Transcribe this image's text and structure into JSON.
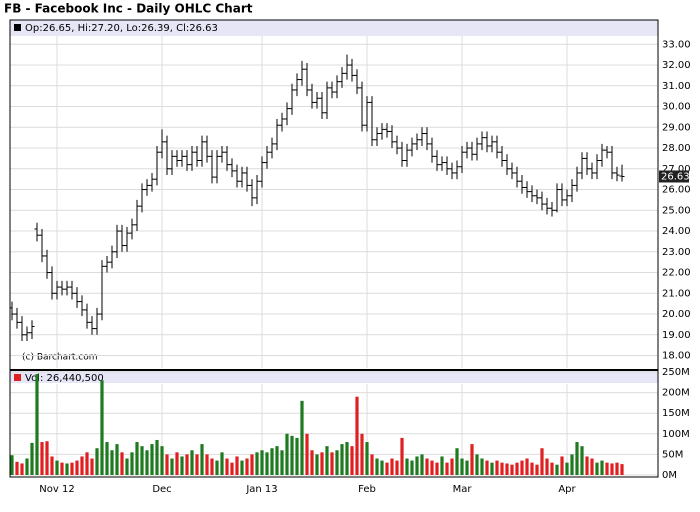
{
  "chart_data": {
    "type": "ohlc",
    "title": "FB - Facebook Inc - Daily OHLC Chart",
    "ohlc_summary": "Op:26.65, Hi:27.20, Lo:26.39, Cl:26.63",
    "watermark": "(c) Barchart.com",
    "volume_label": "Vol: 26,440,500",
    "grid": true,
    "up_color": "#1e7a1e",
    "down_color": "#e02020",
    "bar_color": "#000000",
    "categories": [
      null,
      null,
      null,
      null,
      null,
      null,
      null,
      null,
      null,
      "Nov 12",
      null,
      null,
      null,
      null,
      null,
      null,
      null,
      null,
      null,
      null,
      null,
      null,
      null,
      null,
      null,
      null,
      null,
      null,
      null,
      null,
      "Dec",
      null,
      null,
      null,
      null,
      null,
      null,
      null,
      null,
      null,
      null,
      null,
      null,
      null,
      null,
      null,
      null,
      null,
      null,
      null,
      "Jan 13",
      null,
      null,
      null,
      null,
      null,
      null,
      null,
      null,
      null,
      null,
      null,
      null,
      null,
      null,
      null,
      null,
      null,
      null,
      null,
      null,
      "Feb",
      null,
      null,
      null,
      null,
      null,
      null,
      null,
      null,
      null,
      null,
      null,
      null,
      null,
      null,
      null,
      null,
      null,
      null,
      "Mar",
      null,
      null,
      null,
      null,
      null,
      null,
      null,
      null,
      null,
      null,
      null,
      null,
      null,
      null,
      null,
      null,
      null,
      null,
      null,
      null,
      "Apr",
      null,
      null,
      null,
      null,
      null,
      null,
      null,
      null,
      null,
      null,
      null
    ],
    "open": [
      20.3,
      20.0,
      19.6,
      19.0,
      19.1,
      24.1,
      23.8,
      22.8,
      22.0,
      21.0,
      21.3,
      21.2,
      21.3,
      21.0,
      20.6,
      20.2,
      19.6,
      19.3,
      20.0,
      22.3,
      22.5,
      23.0,
      24.0,
      23.3,
      23.9,
      24.3,
      25.2,
      26.0,
      26.2,
      26.5,
      27.8,
      28.3,
      27.0,
      27.6,
      27.4,
      27.6,
      27.2,
      27.8,
      27.4,
      28.3,
      27.6,
      26.6,
      27.6,
      27.8,
      27.2,
      26.9,
      26.4,
      26.8,
      26.2,
      25.6,
      26.4,
      27.3,
      27.8,
      28.2,
      29.1,
      29.4,
      29.9,
      30.8,
      31.3,
      31.8,
      30.8,
      30.2,
      30.4,
      29.7,
      30.9,
      30.7,
      31.2,
      31.6,
      32.0,
      31.5,
      30.9,
      29.1,
      30.2,
      28.4,
      28.7,
      28.9,
      28.8,
      28.3,
      28.0,
      27.4,
      27.9,
      28.2,
      28.4,
      28.7,
      28.2,
      27.6,
      27.2,
      27.3,
      27.0,
      26.8,
      27.1,
      27.8,
      28.0,
      27.7,
      28.2,
      28.5,
      28.1,
      28.3,
      27.8,
      27.4,
      27.0,
      26.8,
      26.4,
      26.1,
      25.9,
      25.7,
      25.6,
      25.3,
      25.1,
      25.0,
      26.0,
      25.5,
      25.7,
      26.2,
      26.8,
      27.5,
      27.0,
      26.8,
      27.4,
      27.9,
      27.8,
      26.8,
      26.65
    ],
    "high": [
      20.6,
      20.3,
      19.9,
      19.4,
      19.7,
      24.4,
      24.1,
      23.1,
      22.3,
      21.6,
      21.6,
      21.6,
      21.6,
      21.3,
      20.9,
      20.5,
      19.9,
      20.3,
      22.6,
      22.8,
      23.3,
      24.3,
      24.3,
      24.2,
      24.6,
      25.5,
      26.3,
      26.5,
      26.8,
      28.1,
      28.9,
      28.6,
      27.9,
      27.9,
      27.9,
      27.9,
      28.1,
      28.1,
      28.6,
      28.6,
      27.9,
      27.9,
      28.1,
      28.1,
      27.5,
      27.2,
      27.1,
      27.1,
      26.5,
      26.7,
      27.6,
      28.1,
      28.5,
      29.4,
      29.7,
      30.2,
      31.1,
      31.6,
      32.2,
      32.1,
      31.1,
      30.7,
      30.7,
      31.2,
      31.2,
      31.5,
      31.9,
      32.5,
      32.3,
      31.8,
      31.2,
      30.5,
      30.5,
      29.0,
      29.2,
      29.2,
      29.1,
      28.6,
      28.3,
      28.2,
      28.5,
      28.7,
      29.0,
      29.0,
      28.5,
      27.9,
      27.6,
      27.6,
      27.3,
      27.4,
      28.1,
      28.3,
      28.3,
      28.5,
      28.8,
      28.8,
      28.6,
      28.6,
      28.1,
      27.7,
      27.3,
      27.1,
      26.7,
      26.4,
      26.2,
      26.0,
      25.9,
      25.6,
      25.4,
      26.3,
      26.3,
      26.0,
      26.5,
      27.1,
      27.8,
      27.8,
      27.3,
      27.7,
      28.2,
      28.1,
      28.1,
      27.1,
      27.2
    ],
    "low": [
      19.7,
      19.3,
      18.7,
      18.7,
      18.8,
      23.5,
      22.5,
      21.7,
      20.7,
      20.7,
      20.9,
      20.9,
      20.7,
      20.3,
      19.9,
      19.3,
      19.0,
      19.0,
      19.7,
      22.0,
      22.2,
      22.7,
      23.0,
      23.0,
      23.6,
      24.0,
      24.9,
      25.7,
      25.9,
      26.2,
      27.5,
      26.7,
      26.7,
      27.1,
      27.1,
      26.9,
      26.9,
      27.1,
      27.1,
      27.3,
      26.3,
      26.3,
      27.3,
      26.9,
      26.6,
      26.1,
      26.1,
      25.9,
      25.2,
      25.3,
      26.1,
      27.0,
      27.5,
      27.9,
      28.8,
      29.1,
      29.6,
      30.5,
      31.0,
      30.5,
      29.9,
      29.9,
      29.4,
      29.4,
      30.4,
      30.4,
      30.9,
      31.3,
      31.2,
      30.6,
      28.8,
      28.8,
      28.1,
      28.1,
      28.4,
      28.5,
      28.0,
      27.7,
      27.1,
      27.1,
      27.6,
      27.9,
      28.1,
      27.9,
      27.3,
      26.9,
      26.9,
      26.7,
      26.5,
      26.5,
      26.8,
      27.5,
      27.4,
      27.4,
      27.9,
      27.8,
      27.8,
      27.5,
      27.1,
      26.7,
      26.5,
      26.1,
      25.8,
      25.6,
      25.4,
      25.3,
      25.0,
      24.8,
      24.7,
      24.9,
      25.2,
      25.2,
      25.4,
      25.9,
      26.5,
      26.7,
      26.5,
      26.5,
      27.1,
      27.5,
      26.5,
      26.4,
      26.39
    ],
    "close": [
      20.0,
      19.6,
      19.0,
      19.1,
      19.4,
      23.8,
      22.8,
      22.0,
      21.0,
      21.3,
      21.2,
      21.3,
      21.0,
      20.6,
      20.2,
      19.6,
      19.3,
      20.0,
      22.3,
      22.5,
      23.0,
      24.0,
      23.3,
      23.9,
      24.3,
      25.2,
      26.0,
      26.2,
      26.5,
      27.8,
      28.3,
      27.0,
      27.6,
      27.4,
      27.6,
      27.2,
      27.8,
      27.4,
      28.3,
      27.6,
      26.6,
      27.6,
      27.8,
      27.2,
      26.9,
      26.4,
      26.8,
      26.2,
      25.6,
      26.4,
      27.3,
      27.8,
      28.2,
      29.1,
      29.4,
      29.9,
      30.8,
      31.3,
      31.8,
      30.8,
      30.2,
      30.4,
      29.7,
      30.9,
      30.7,
      31.2,
      31.6,
      32.0,
      31.5,
      30.9,
      29.1,
      30.2,
      28.4,
      28.7,
      28.9,
      28.8,
      28.3,
      28.0,
      27.4,
      27.9,
      28.2,
      28.4,
      28.7,
      28.2,
      27.6,
      27.2,
      27.3,
      27.0,
      26.8,
      27.1,
      27.8,
      28.0,
      27.7,
      28.2,
      28.5,
      28.1,
      28.3,
      27.8,
      27.4,
      27.0,
      26.8,
      26.4,
      26.1,
      25.9,
      25.7,
      25.6,
      25.3,
      25.1,
      25.0,
      26.0,
      25.5,
      25.7,
      26.2,
      26.8,
      27.5,
      27.0,
      26.8,
      27.4,
      27.9,
      27.8,
      26.8,
      26.7,
      26.63
    ],
    "volume": [
      48,
      32,
      28,
      40,
      78,
      245,
      80,
      82,
      45,
      35,
      30,
      28,
      30,
      35,
      45,
      55,
      40,
      65,
      230,
      80,
      60,
      75,
      55,
      40,
      55,
      80,
      70,
      60,
      75,
      85,
      70,
      50,
      40,
      55,
      45,
      50,
      60,
      50,
      75,
      50,
      40,
      35,
      55,
      40,
      30,
      45,
      35,
      40,
      50,
      55,
      60,
      55,
      65,
      70,
      60,
      100,
      95,
      90,
      180,
      100,
      60,
      50,
      55,
      70,
      55,
      60,
      75,
      80,
      70,
      190,
      100,
      80,
      50,
      40,
      35,
      30,
      40,
      35,
      90,
      40,
      35,
      45,
      50,
      40,
      35,
      30,
      45,
      30,
      40,
      65,
      40,
      35,
      75,
      50,
      40,
      35,
      30,
      35,
      30,
      28,
      25,
      30,
      35,
      40,
      30,
      25,
      65,
      40,
      30,
      25,
      45,
      30,
      50,
      80,
      70,
      45,
      40,
      30,
      35,
      30,
      28,
      30,
      26.44
    ],
    "ylim": [
      17.4,
      33.4
    ],
    "yticks": [
      {
        "value": 18,
        "label": "18.00"
      },
      {
        "value": 19,
        "label": "19.00"
      },
      {
        "value": 20,
        "label": "20.00"
      },
      {
        "value": 21,
        "label": "21.00"
      },
      {
        "value": 22,
        "label": "22.00"
      },
      {
        "value": 23,
        "label": "23.00"
      },
      {
        "value": 24,
        "label": "24.00"
      },
      {
        "value": 25,
        "label": "25.00"
      },
      {
        "value": 26,
        "label": "26.00"
      },
      {
        "value": 27,
        "label": "27.00"
      },
      {
        "value": 28,
        "label": "28.00"
      },
      {
        "value": 29,
        "label": "29.00"
      },
      {
        "value": 30,
        "label": "30.00"
      },
      {
        "value": 31,
        "label": "31.00"
      },
      {
        "value": 32,
        "label": "32.00"
      },
      {
        "value": 33,
        "label": "33.00"
      }
    ],
    "y2lim": [
      0,
      250
    ],
    "y2ticks": [
      {
        "value": 0,
        "label": "0M"
      },
      {
        "value": 50,
        "label": "50M"
      },
      {
        "value": 100,
        "label": "100M"
      },
      {
        "value": 150,
        "label": "150M"
      },
      {
        "value": 200,
        "label": "200M"
      },
      {
        "value": 250,
        "label": "250M"
      }
    ]
  }
}
